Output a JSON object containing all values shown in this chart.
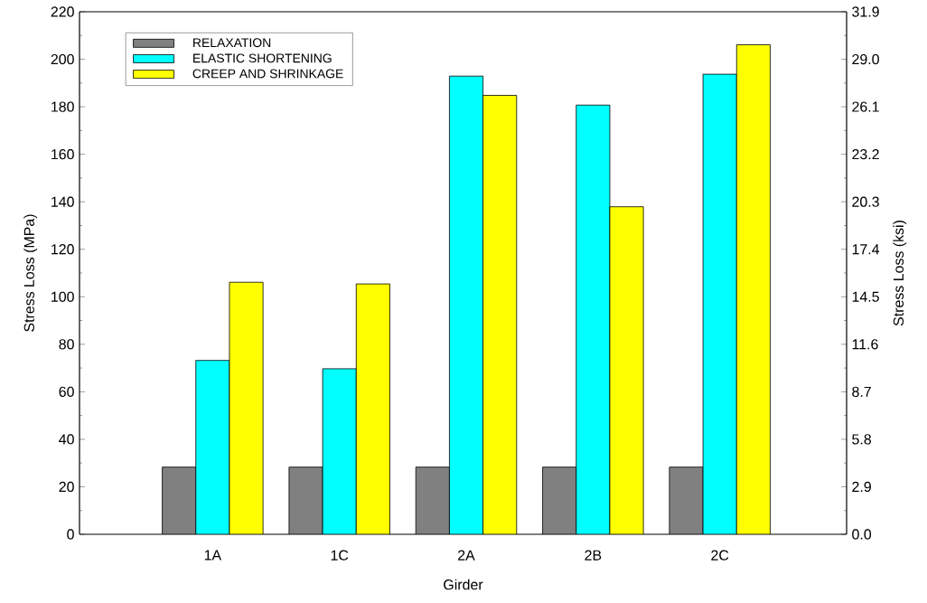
{
  "chart_data": {
    "type": "bar",
    "xlabel": "Girder",
    "ylabel": "Stress Loss (MPa)",
    "y2label": "Stress Loss (ksi)",
    "categories": [
      "1A",
      "1C",
      "2A",
      "2B",
      "2C"
    ],
    "series": [
      {
        "name": "RELAXATION",
        "color": "#808080",
        "values": [
          28.3,
          28.3,
          28.3,
          28.3,
          28.3
        ]
      },
      {
        "name": "ELASTIC SHORTENING",
        "color": "#00ffff",
        "values": [
          73.2,
          69.7,
          192.9,
          180.7,
          193.7
        ]
      },
      {
        "name": "CREEP AND SHRINKAGE",
        "color": "#ffff00",
        "values": [
          106.1,
          105.4,
          184.8,
          137.9,
          206.1
        ]
      }
    ],
    "ylim": [
      0,
      220
    ],
    "yticks": [
      0,
      20,
      40,
      60,
      80,
      100,
      120,
      140,
      160,
      180,
      200,
      220
    ],
    "y2lim": [
      0,
      31.9
    ],
    "y2ticks": [
      {
        "value": 0,
        "label": "0.0"
      },
      {
        "value": 2.9,
        "label": "2.9"
      },
      {
        "value": 5.8,
        "label": "5.8"
      },
      {
        "value": 8.7,
        "label": "8.7"
      },
      {
        "value": 11.6,
        "label": "11.6"
      },
      {
        "value": 14.5,
        "label": "14.5"
      },
      {
        "value": 17.4,
        "label": "17.4"
      },
      {
        "value": 20.3,
        "label": "20.3"
      },
      {
        "value": 23.2,
        "label": "23.2"
      },
      {
        "value": 26.1,
        "label": "26.1"
      },
      {
        "value": 29.0,
        "label": "29.0"
      },
      {
        "value": 31.9,
        "label": "31.9"
      }
    ],
    "legend": "top left"
  }
}
